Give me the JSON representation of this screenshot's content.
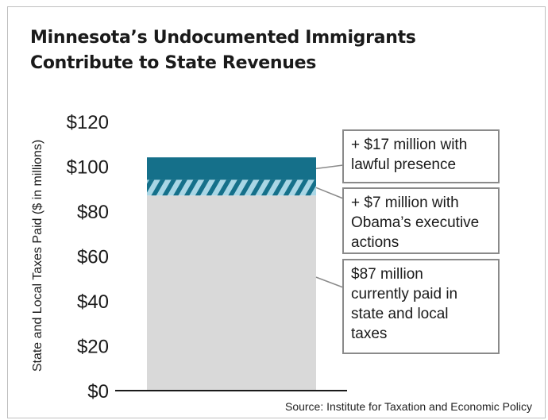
{
  "title_lines": [
    "Minnesota’s Undocumented Immigrants",
    "Contribute to State Revenues"
  ],
  "source": "Source: Institute for Taxation and Economic Policy",
  "colors": {
    "base": "#d9d9d9",
    "executive_actions": "#a9d6e5",
    "lawful_presence": "#15708a",
    "box_border": "#8a8a8a"
  },
  "chart_data": {
    "type": "bar",
    "stacked": true,
    "categories": [
      ""
    ],
    "ylabel": "State and Local Taxes Paid ($ in millions)",
    "ylim": [
      0,
      120
    ],
    "yticks": [
      0,
      20,
      40,
      60,
      80,
      100,
      120
    ],
    "ytick_labels": [
      "$0",
      "$20",
      "$40",
      "$60",
      "$80",
      "$100",
      "$120"
    ],
    "grid": false,
    "series": [
      {
        "name": "",
        "values": [
          87
        ],
        "fill": "solid",
        "color": "#d9d9d9",
        "annotation": [
          "$87 million",
          "currently paid in",
          "state and local",
          "taxes"
        ]
      },
      {
        "name": "",
        "values": [
          7
        ],
        "fill": "hatched",
        "color": "#a9d6e5",
        "annotation": [
          "+ $7 million with",
          "Obama’s executive",
          "actions"
        ]
      },
      {
        "name": "",
        "values": [
          10
        ],
        "fill": "solid",
        "color": "#15708a",
        "annotation": [
          "+ $17 million with",
          "lawful presence"
        ]
      }
    ]
  }
}
